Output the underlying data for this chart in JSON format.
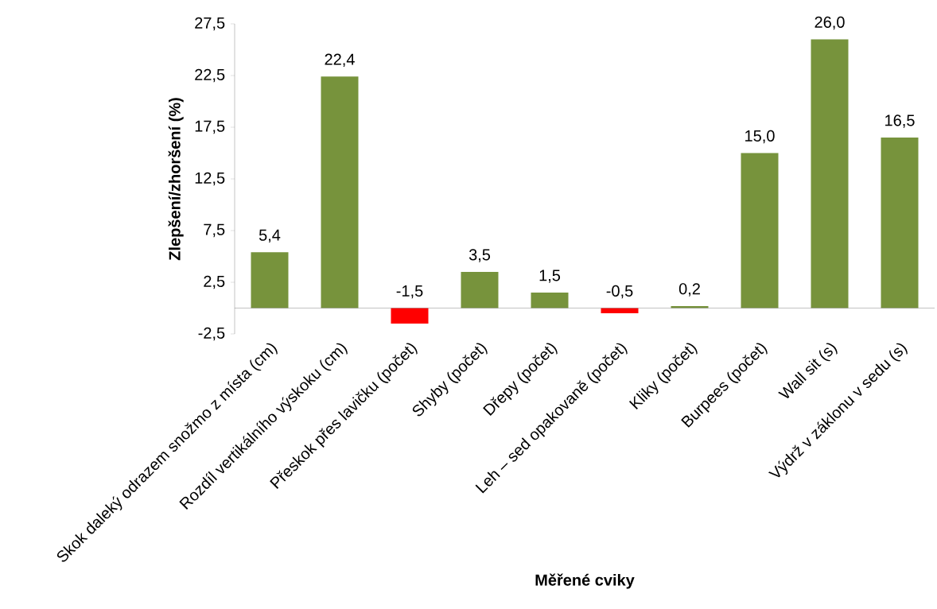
{
  "chart_data": {
    "type": "bar",
    "xlabel": "Měřené cviky",
    "ylabel": "Zlepšení/zhoršení (%)",
    "categories": [
      "Skok daleký odrazem snožmo z místa (cm)",
      "Rozdíl vertikálního výskoku (cm)",
      "Přeskok přes lavičku (počet)",
      "Shyby (počet)",
      "Dřepy (počet)",
      "Leh – sed opakovaně (počet)",
      "Kliky (počet)",
      "Burpees (počet)",
      "Wall sit (s)",
      "Výdrž v záklonu v sedu (s)"
    ],
    "values": [
      5.4,
      22.4,
      -1.5,
      3.5,
      1.5,
      -0.5,
      0.2,
      15.0,
      26.0,
      16.5
    ],
    "value_labels": [
      "5,4",
      "22,4",
      "-1,5",
      "3,5",
      "1,5",
      "-0,5",
      "0,2",
      "15,0",
      "26,0",
      "16,5"
    ],
    "colors": [
      "#77933c",
      "#77933c",
      "#ff0000",
      "#77933c",
      "#77933c",
      "#ff0000",
      "#77933c",
      "#77933c",
      "#77933c",
      "#77933c"
    ],
    "ylim": [
      -2.5,
      27.5
    ],
    "yticks": [
      {
        "value": -2.5,
        "label": "-2,5"
      },
      {
        "value": 2.5,
        "label": "2,5"
      },
      {
        "value": 7.5,
        "label": "7,5"
      },
      {
        "value": 12.5,
        "label": "12,5"
      },
      {
        "value": 17.5,
        "label": "17,5"
      },
      {
        "value": 22.5,
        "label": "22,5"
      },
      {
        "value": 27.5,
        "label": "27,5"
      }
    ],
    "grid": false
  }
}
